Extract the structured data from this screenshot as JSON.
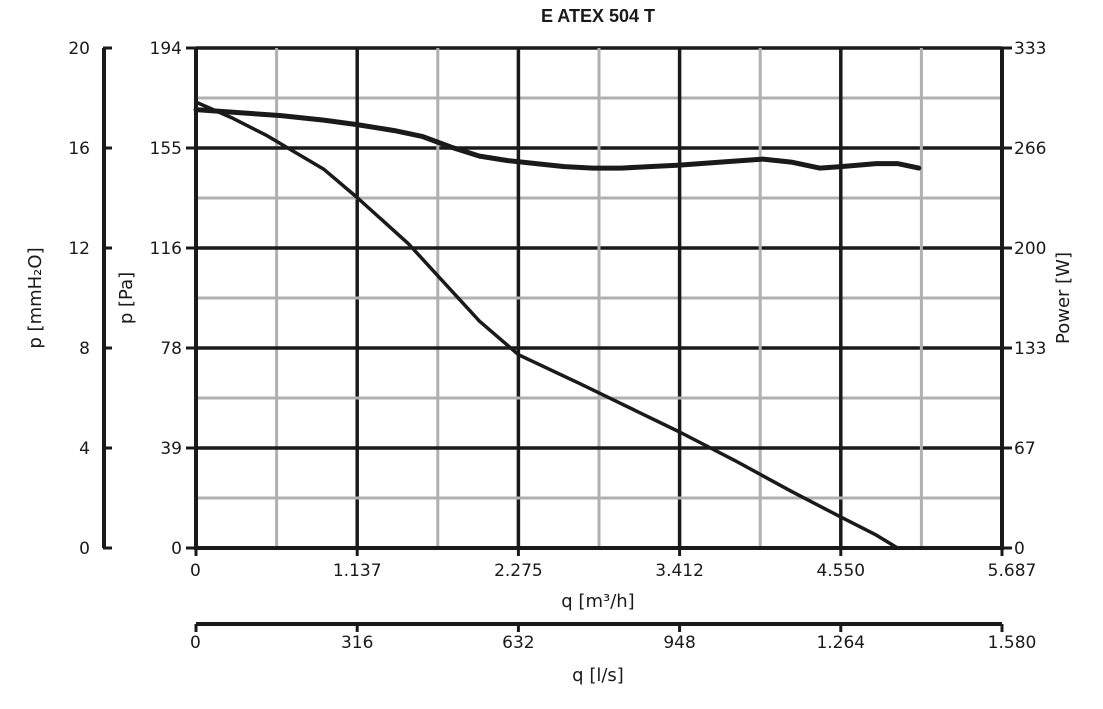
{
  "chart_data": {
    "type": "line",
    "title": "E ATEX 504 T",
    "xlabel_main": "q [m³/h]",
    "xlabel_secondary": "q [l/s]",
    "ylabel_mmh2o": "p [mmH₂O]",
    "ylabel_pa": "p [Pa]",
    "ylabel_power": "Power [W]",
    "x_ticks_m3h": [
      "0",
      "1.137",
      "2.275",
      "3.412",
      "4.550",
      "5.687"
    ],
    "x_ticks_ls": [
      "0",
      "316",
      "632",
      "948",
      "1.264",
      "1.580"
    ],
    "y_ticks_pa": [
      "0",
      "39",
      "78",
      "116",
      "155",
      "194"
    ],
    "y_ticks_mmh2o": [
      "0",
      "4",
      "8",
      "12",
      "16",
      "20"
    ],
    "y_ticks_power": [
      "0",
      "67",
      "133",
      "200",
      "266",
      "333"
    ],
    "xlim_m3h": [
      0,
      5687
    ],
    "ylim_pa": [
      0,
      194
    ],
    "ylim_power": [
      0,
      333
    ],
    "grid": true,
    "series": [
      {
        "axis": "pressure_pa",
        "x": [
          0,
          250,
          500,
          900,
          1137,
          1500,
          1700,
          2000,
          2275,
          2700,
          3000,
          3412,
          3800,
          4200,
          4550,
          4800,
          4950
        ],
        "y": [
          173,
          167,
          160,
          147,
          136,
          118,
          106,
          88,
          75,
          64,
          56,
          45,
          34,
          22,
          12,
          5,
          0
        ]
      },
      {
        "axis": "power_w",
        "x": [
          0,
          300,
          600,
          900,
          1137,
          1400,
          1600,
          1800,
          2000,
          2200,
          2400,
          2600,
          2800,
          3000,
          3200,
          3412,
          3700,
          4000,
          4200,
          4400,
          4550,
          4800,
          4950,
          5100
        ],
        "y": [
          292,
          290,
          288,
          285,
          282,
          278,
          274,
          267,
          261,
          258,
          256,
          254,
          253,
          253,
          254,
          255,
          257,
          259,
          257,
          253,
          254,
          256,
          256,
          253
        ]
      }
    ]
  }
}
